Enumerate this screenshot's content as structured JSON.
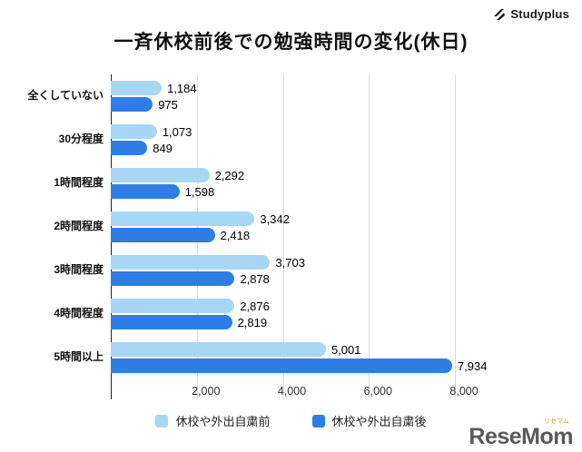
{
  "header": {
    "title": "一斉休校前後での勉強時間の変化(休日)",
    "brand": "Studyplus"
  },
  "chart_data": {
    "type": "bar",
    "orientation": "horizontal",
    "title": "一斉休校前後での勉強時間の変化(休日)",
    "categories": [
      "全くしていない",
      "30分程度",
      "1時間程度",
      "2時間程度",
      "3時間程度",
      "4時間程度",
      "5時間以上"
    ],
    "series": [
      {
        "name": "休校や外出自粛前",
        "color": "#a8d6f5",
        "values": [
          1184,
          1073,
          2292,
          3342,
          3703,
          2876,
          5001
        ],
        "labels": [
          "1,184",
          "1,073",
          "2,292",
          "3,342",
          "3,703",
          "2,876",
          "5,001"
        ]
      },
      {
        "name": "休校や外出自粛後",
        "color": "#2e7de4",
        "values": [
          975,
          849,
          1598,
          2418,
          2878,
          2819,
          7934
        ],
        "labels": [
          "975",
          "849",
          "1,598",
          "2,418",
          "2,878",
          "2,819",
          "7,934"
        ]
      }
    ],
    "xticks": [
      2000,
      4000,
      6000,
      8000
    ],
    "xtick_labels": [
      "2,000",
      "4,000",
      "6,000",
      "8,000"
    ],
    "xmax": 8400,
    "grid": true,
    "legend_position": "bottom"
  },
  "footer": {
    "watermark": "ReseMom",
    "watermark_sub": "リセマム"
  }
}
